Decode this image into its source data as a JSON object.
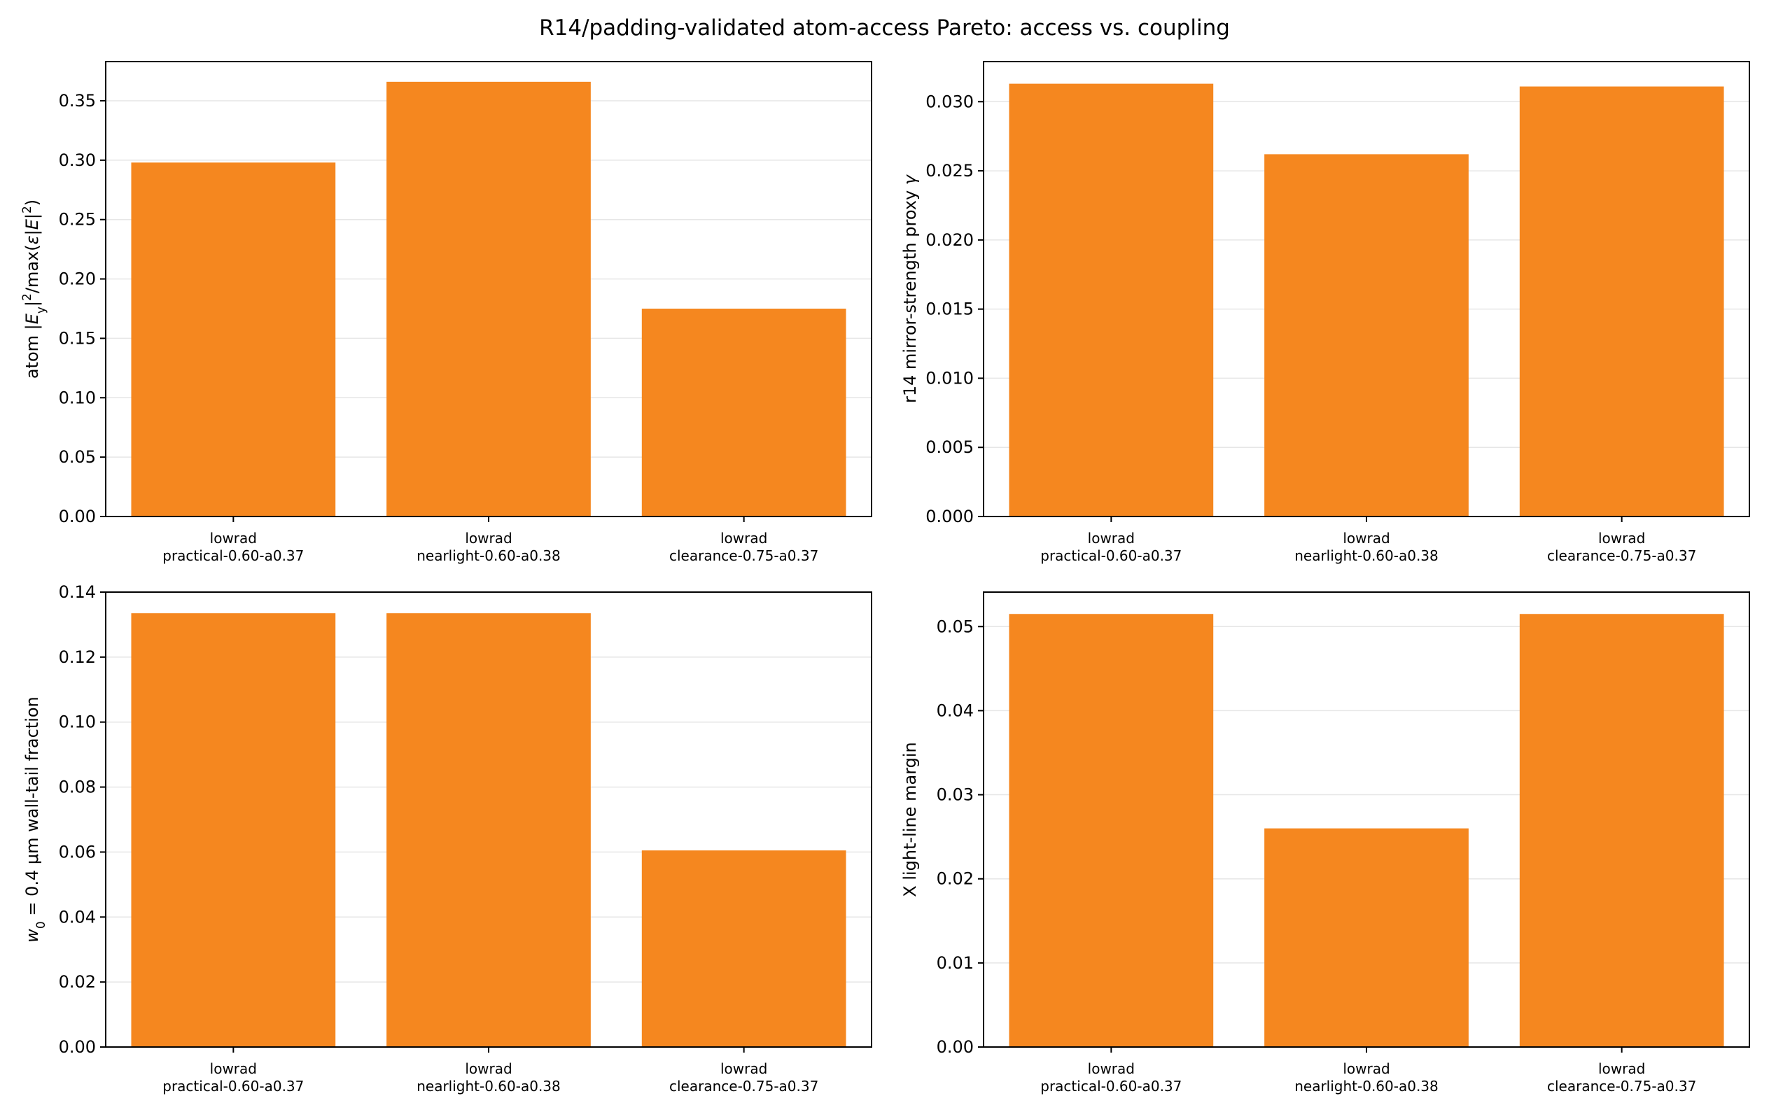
{
  "figure": {
    "suptitle": "R14/padding-validated atom-access Pareto: access vs. coupling",
    "bar_color": "#f5871f",
    "grid_color": "#e6e6e6"
  },
  "chart_data": [
    {
      "type": "bar",
      "title": "",
      "categories": [
        [
          "lowrad",
          "practical-0.60-a0.37"
        ],
        [
          "lowrad",
          "nearlight-0.60-a0.38"
        ],
        [
          "lowrad",
          "clearance-0.75-a0.37"
        ]
      ],
      "values": [
        0.298,
        0.366,
        0.175
      ],
      "ylabel_parts": [
        {
          "t": "atom |"
        },
        {
          "t": "E",
          "i": true
        },
        {
          "t": "y",
          "sub": true
        },
        {
          "t": "|"
        },
        {
          "t": "2",
          "sup": true
        },
        {
          "t": "/max("
        },
        {
          "t": "ε",
          "i": true
        },
        {
          "t": "|"
        },
        {
          "t": "E",
          "i": true
        },
        {
          "t": "|"
        },
        {
          "t": "2",
          "sup": true
        },
        {
          "t": ")"
        }
      ],
      "ylim": [
        0,
        0.383
      ],
      "yticks": [
        0.0,
        0.05,
        0.1,
        0.15,
        0.2,
        0.25,
        0.3,
        0.35
      ],
      "ytick_labels": [
        "0.00",
        "0.05",
        "0.10",
        "0.15",
        "0.20",
        "0.25",
        "0.30",
        "0.35"
      ],
      "grid": "y"
    },
    {
      "type": "bar",
      "title": "",
      "categories": [
        [
          "lowrad",
          "practical-0.60-a0.37"
        ],
        [
          "lowrad",
          "nearlight-0.60-a0.38"
        ],
        [
          "lowrad",
          "clearance-0.75-a0.37"
        ]
      ],
      "values": [
        0.0313,
        0.0262,
        0.0311
      ],
      "ylabel_parts": [
        {
          "t": "r14 mirror-strength proxy "
        },
        {
          "t": "γ",
          "i": true
        }
      ],
      "ylim": [
        0,
        0.0329
      ],
      "yticks": [
        0.0,
        0.005,
        0.01,
        0.015,
        0.02,
        0.025,
        0.03
      ],
      "ytick_labels": [
        "0.000",
        "0.005",
        "0.010",
        "0.015",
        "0.020",
        "0.025",
        "0.030"
      ],
      "grid": "y"
    },
    {
      "type": "bar",
      "title": "",
      "categories": [
        [
          "lowrad",
          "practical-0.60-a0.37"
        ],
        [
          "lowrad",
          "nearlight-0.60-a0.38"
        ],
        [
          "lowrad",
          "clearance-0.75-a0.37"
        ]
      ],
      "values": [
        0.1335,
        0.1335,
        0.0605
      ],
      "ylabel_parts": [
        {
          "t": "w",
          "i": true
        },
        {
          "t": "0",
          "sub": true
        },
        {
          "t": " = 0.4 μm wall-tail fraction"
        }
      ],
      "ylim": [
        0,
        0.14
      ],
      "yticks": [
        0.0,
        0.02,
        0.04,
        0.06,
        0.08,
        0.1,
        0.12,
        0.14
      ],
      "ytick_labels": [
        "0.00",
        "0.02",
        "0.04",
        "0.06",
        "0.08",
        "0.10",
        "0.12",
        "0.14"
      ],
      "grid": "y"
    },
    {
      "type": "bar",
      "title": "",
      "categories": [
        [
          "lowrad",
          "practical-0.60-a0.37"
        ],
        [
          "lowrad",
          "nearlight-0.60-a0.38"
        ],
        [
          "lowrad",
          "clearance-0.75-a0.37"
        ]
      ],
      "values": [
        0.0515,
        0.026,
        0.0515
      ],
      "ylabel_parts": [
        {
          "t": "X light-line margin"
        }
      ],
      "ylim": [
        0,
        0.0541
      ],
      "yticks": [
        0.0,
        0.01,
        0.02,
        0.03,
        0.04,
        0.05
      ],
      "ytick_labels": [
        "0.00",
        "0.01",
        "0.02",
        "0.03",
        "0.04",
        "0.05"
      ],
      "grid": "y"
    }
  ]
}
